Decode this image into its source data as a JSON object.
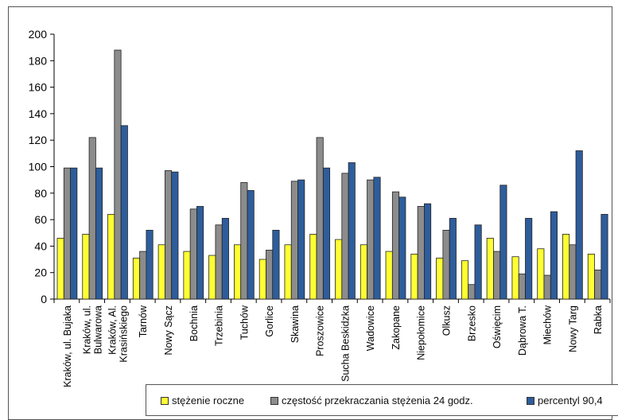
{
  "chart_data": {
    "type": "bar",
    "title": "",
    "xlabel": "",
    "ylabel": "",
    "ylim": [
      0,
      200
    ],
    "yticks": [
      "0",
      "20",
      "40",
      "60",
      "80",
      "100",
      "120",
      "140",
      "160",
      "180",
      "200"
    ],
    "grid": false,
    "legend_position": "bottom",
    "categories": [
      "Kraków, ul. Bujaka",
      "Kraków, ul. Bulwarowa",
      "Kraków, Al. Krasińskiego",
      "Tarnów",
      "Nowy Sącz",
      "Bochnia",
      "Trzebinia",
      "Tuchów",
      "Gorlice",
      "Skawina",
      "Proszowice",
      "Sucha Beskidzka",
      "Wadowice",
      "Zakopane",
      "Niepołomice",
      "Olkusz",
      "Brzesko",
      "Oświęcim",
      "Dąbrowa T.",
      "Miechów",
      "Nowy Targ",
      "Rabka"
    ],
    "category_lines": [
      [
        "Kraków, ul. Bujaka"
      ],
      [
        "Kraków, ul.",
        "Bulwarowa"
      ],
      [
        "Kraków, Al.",
        "Krasińskiego"
      ],
      [
        "Tarnów"
      ],
      [
        "Nowy Sącz"
      ],
      [
        "Bochnia"
      ],
      [
        "Trzebinia"
      ],
      [
        "Tuchów"
      ],
      [
        "Gorlice"
      ],
      [
        "Skawina"
      ],
      [
        "Proszowice"
      ],
      [
        "Sucha Beskidzka"
      ],
      [
        "Wadowice"
      ],
      [
        "Zakopane"
      ],
      [
        "Niepołomice"
      ],
      [
        "Olkusz"
      ],
      [
        "Brzesko"
      ],
      [
        "Oświęcim"
      ],
      [
        "Dąbrowa T."
      ],
      [
        "Miechów"
      ],
      [
        "Nowy Targ"
      ],
      [
        "Rabka"
      ]
    ],
    "series": [
      {
        "name": "stężenie roczne",
        "color": "#ffff33",
        "values": [
          46,
          49,
          64,
          31,
          41,
          36,
          33,
          41,
          30,
          41,
          49,
          45,
          41,
          36,
          34,
          31,
          29,
          46,
          32,
          38,
          49,
          34
        ]
      },
      {
        "name": "częstość przekraczania stężenia 24 godz.",
        "color": "#8c8c8c",
        "values": [
          99,
          122,
          188,
          36,
          97,
          68,
          56,
          88,
          37,
          89,
          122,
          95,
          90,
          81,
          70,
          52,
          11,
          36,
          19,
          18,
          41,
          22
        ]
      },
      {
        "name": "percentyl 90,4",
        "color": "#2e5d9c",
        "values": [
          99,
          99,
          131,
          52,
          96,
          70,
          61,
          82,
          52,
          90,
          99,
          103,
          92,
          77,
          72,
          61,
          56,
          86,
          61,
          66,
          112,
          64
        ]
      }
    ]
  }
}
